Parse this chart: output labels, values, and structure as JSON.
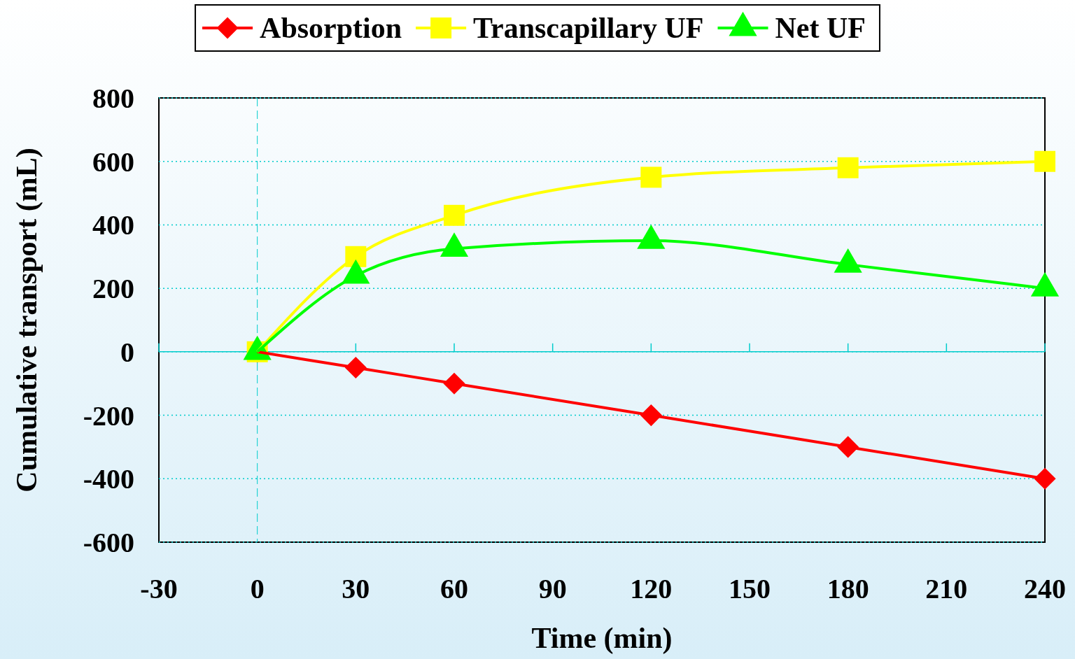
{
  "chart_data": {
    "type": "line",
    "xlabel": "Time (min)",
    "ylabel": "Cumulative transport (mL)",
    "x": [
      0,
      30,
      60,
      120,
      180,
      240
    ],
    "series": [
      {
        "name": "Absorption",
        "color": "#ff0000",
        "marker": "diamond",
        "values": [
          0,
          -50,
          -100,
          -200,
          -300,
          -400
        ]
      },
      {
        "name": "Transcapillary UF",
        "color": "#ffff00",
        "marker": "square",
        "values": [
          0,
          300,
          430,
          550,
          580,
          600
        ]
      },
      {
        "name": "Net UF",
        "color": "#00ff00",
        "marker": "triangle",
        "values": [
          0,
          240,
          325,
          350,
          275,
          200
        ]
      }
    ],
    "xlim": [
      -30,
      240
    ],
    "xticks": [
      -30,
      0,
      30,
      60,
      90,
      120,
      150,
      180,
      210,
      240
    ],
    "ylim": [
      -600,
      800
    ],
    "yticks": [
      -600,
      -400,
      -200,
      0,
      200,
      400,
      600,
      800
    ],
    "ref_lines": [
      {
        "axis": "y",
        "value": 0,
        "color": "#00cccc",
        "line_style": "solid"
      },
      {
        "axis": "x",
        "value": 0,
        "color": "#00cccc",
        "line_style": "dashed"
      }
    ],
    "grid": "y",
    "legend": "top",
    "line_style": "solid"
  }
}
